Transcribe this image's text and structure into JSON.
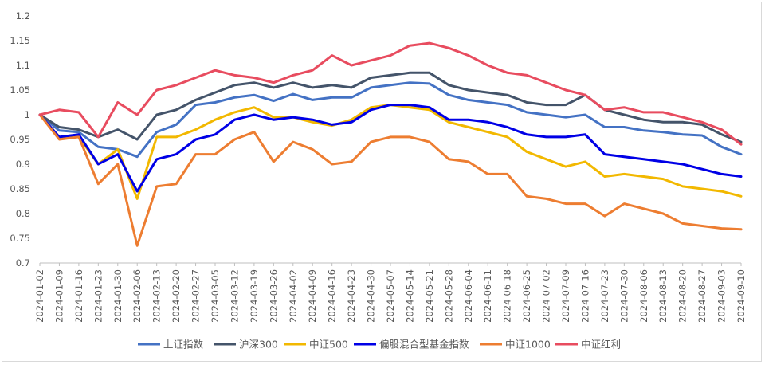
{
  "chart_data": {
    "type": "line",
    "title": "",
    "xlabel": "",
    "ylabel": "",
    "ylim": [
      0.7,
      1.2
    ],
    "yticks": [
      "0.7",
      "0.75",
      "0.8",
      "0.85",
      "0.9",
      "0.95",
      "1",
      "1.05",
      "1.1",
      "1.15",
      "1.2"
    ],
    "x": [
      "2024-01-02",
      "2024-01-09",
      "2024-01-16",
      "2024-01-23",
      "2024-01-30",
      "2024-02-06",
      "2024-02-13",
      "2024-02-20",
      "2024-02-27",
      "2024-03-05",
      "2024-03-12",
      "2024-03-19",
      "2024-03-26",
      "2024-04-02",
      "2024-04-09",
      "2024-04-16",
      "2024-04-23",
      "2024-04-30",
      "2024-05-07",
      "2024-05-14",
      "2024-05-21",
      "2024-05-28",
      "2024-06-04",
      "2024-06-11",
      "2024-06-18",
      "2024-06-25",
      "2024-07-02",
      "2024-07-09",
      "2024-07-16",
      "2024-07-23",
      "2024-07-30",
      "2024-08-06",
      "2024-08-13",
      "2024-08-20",
      "2024-08-27",
      "2024-09-03",
      "2024-09-10"
    ],
    "grid": false,
    "legend_position": "bottom",
    "series": [
      {
        "name": "上证指数",
        "color": "#4472c4",
        "values": [
          1.0,
          0.968,
          0.965,
          0.935,
          0.93,
          0.915,
          0.965,
          0.98,
          1.02,
          1.025,
          1.035,
          1.04,
          1.028,
          1.042,
          1.03,
          1.035,
          1.035,
          1.055,
          1.06,
          1.065,
          1.063,
          1.04,
          1.03,
          1.025,
          1.02,
          1.005,
          1.0,
          0.995,
          1.0,
          0.975,
          0.975,
          0.968,
          0.965,
          0.96,
          0.958,
          0.935,
          0.92
        ]
      },
      {
        "name": "沪深300",
        "color": "#44546a",
        "values": [
          1.0,
          0.975,
          0.97,
          0.955,
          0.97,
          0.95,
          1.0,
          1.01,
          1.03,
          1.045,
          1.06,
          1.065,
          1.055,
          1.065,
          1.055,
          1.06,
          1.055,
          1.075,
          1.08,
          1.085,
          1.085,
          1.06,
          1.05,
          1.045,
          1.04,
          1.025,
          1.02,
          1.02,
          1.04,
          1.01,
          1.0,
          0.99,
          0.985,
          0.985,
          0.98,
          0.96,
          0.945
        ]
      },
      {
        "name": "中证500",
        "color": "#f2b800",
        "values": [
          1.0,
          0.955,
          0.955,
          0.9,
          0.93,
          0.83,
          0.955,
          0.955,
          0.97,
          0.99,
          1.005,
          1.015,
          0.995,
          0.995,
          0.985,
          0.978,
          0.99,
          1.015,
          1.02,
          1.015,
          1.01,
          0.985,
          0.975,
          0.965,
          0.955,
          0.925,
          0.91,
          0.895,
          0.905,
          0.875,
          0.88,
          0.875,
          0.87,
          0.855,
          0.85,
          0.845,
          0.835
        ]
      },
      {
        "name": "偏股混合型基金指数",
        "color": "#0000e6",
        "values": [
          1.0,
          0.955,
          0.96,
          0.9,
          0.92,
          0.845,
          0.91,
          0.92,
          0.95,
          0.96,
          0.99,
          1.0,
          0.99,
          0.995,
          0.99,
          0.98,
          0.985,
          1.01,
          1.02,
          1.02,
          1.015,
          0.99,
          0.99,
          0.985,
          0.975,
          0.96,
          0.955,
          0.955,
          0.96,
          0.92,
          0.915,
          0.91,
          0.905,
          0.9,
          0.89,
          0.88,
          0.875
        ]
      },
      {
        "name": "中证1000",
        "color": "#ed7d31",
        "values": [
          1.0,
          0.95,
          0.955,
          0.86,
          0.9,
          0.735,
          0.855,
          0.86,
          0.92,
          0.92,
          0.95,
          0.965,
          0.905,
          0.945,
          0.93,
          0.9,
          0.905,
          0.945,
          0.955,
          0.955,
          0.945,
          0.91,
          0.905,
          0.88,
          0.88,
          0.835,
          0.83,
          0.82,
          0.82,
          0.795,
          0.82,
          0.81,
          0.8,
          0.78,
          0.775,
          0.77,
          0.768
        ]
      },
      {
        "name": "中证红利",
        "color": "#e84c5f",
        "values": [
          1.0,
          1.01,
          1.005,
          0.955,
          1.025,
          1.0,
          1.05,
          1.06,
          1.075,
          1.09,
          1.08,
          1.075,
          1.065,
          1.08,
          1.09,
          1.12,
          1.1,
          1.11,
          1.12,
          1.14,
          1.145,
          1.135,
          1.12,
          1.1,
          1.085,
          1.08,
          1.065,
          1.05,
          1.04,
          1.01,
          1.015,
          1.005,
          1.005,
          0.995,
          0.985,
          0.97,
          0.94
        ]
      }
    ]
  }
}
